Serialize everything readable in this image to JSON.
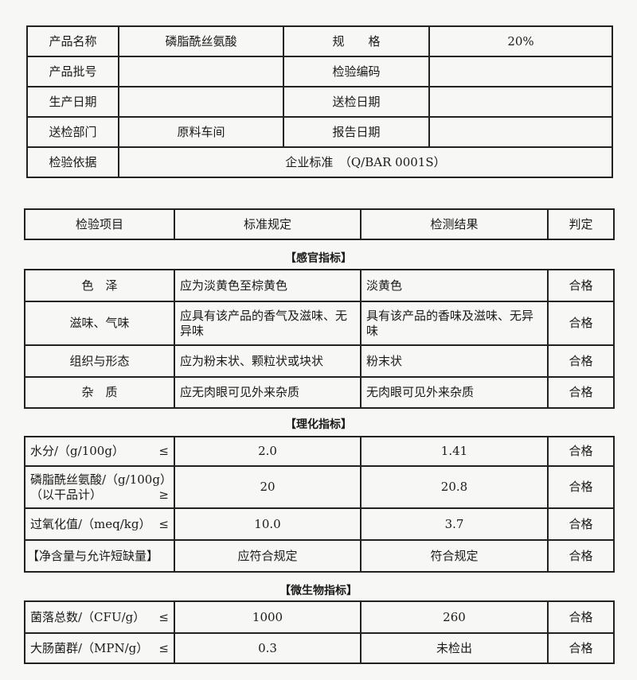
{
  "info": {
    "product_name_label": "产品名称",
    "product_name": "磷脂酰丝氨酸",
    "spec_label": "规　　格",
    "spec": "20%",
    "batch_label": "产品批号",
    "batch": "",
    "inspection_code_label": "检验编码",
    "inspection_code": "",
    "production_date_label": "生产日期",
    "production_date": "",
    "submit_date_label": "送检日期",
    "submit_date": "",
    "department_label": "送检部门",
    "department": "原料车间",
    "report_date_label": "报告日期",
    "report_date": "",
    "basis_label": "检验依据",
    "basis": "企业标准　（Q/BAR 0001S）"
  },
  "header": {
    "item": "检验项目",
    "standard": "标准规定",
    "result": "检测结果",
    "verdict": "判定"
  },
  "sensory": {
    "title": "【感官指标】",
    "rows": [
      {
        "item": "色　泽",
        "standard": "应为淡黄色至棕黄色",
        "result": "淡黄色",
        "verdict": "合格"
      },
      {
        "item": "滋味、气味",
        "standard": "应具有该产品的香气及滋味、无异味",
        "result": "具有该产品的香味及滋味、无异味",
        "verdict": "合格"
      },
      {
        "item": "组织与形态",
        "standard": "应为粉末状、颗粒状或块状",
        "result": "粉末状",
        "verdict": "合格"
      },
      {
        "item": "杂　质",
        "standard": "应无肉眼可见外来杂质",
        "result": "无肉眼可见外来杂质",
        "verdict": "合格"
      }
    ]
  },
  "physchem": {
    "title": "【理化指标】",
    "rows": [
      {
        "item": "水分/（g/100g）",
        "sym": "≤",
        "standard": "2.0",
        "result": "1.41",
        "verdict": "合格"
      },
      {
        "item": "磷脂酰丝氨酸/（g/100g）（以干品计）",
        "sym": "≥",
        "standard": "20",
        "result": "20.8",
        "verdict": "合格"
      },
      {
        "item": "过氧化值/（meq/kg）",
        "sym": "≤",
        "standard": "10.0",
        "result": "3.7",
        "verdict": "合格"
      },
      {
        "item": "【净含量与允许短缺量】",
        "sym": "",
        "standard": "应符合规定",
        "result": "符合规定",
        "verdict": "合格"
      }
    ]
  },
  "micro": {
    "title": "【微生物指标】",
    "rows": [
      {
        "item": "菌落总数/（CFU/g）",
        "sym": "≤",
        "standard": "1000",
        "result": "260",
        "verdict": "合格"
      },
      {
        "item": "大肠菌群/（MPN/g）",
        "sym": "≤",
        "standard": "0.3",
        "result": "未检出",
        "verdict": "合格"
      }
    ]
  }
}
